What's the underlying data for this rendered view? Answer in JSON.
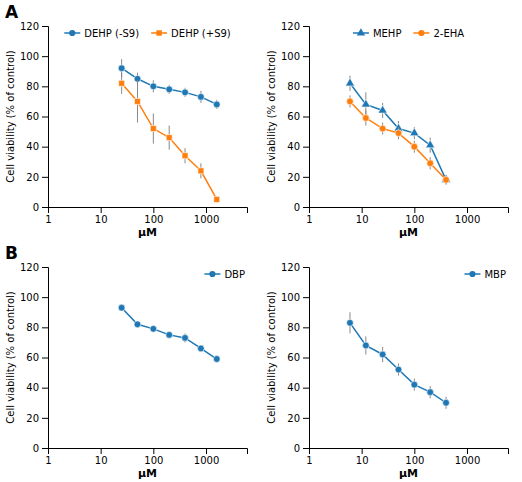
{
  "chart_data": [
    {
      "type": "line",
      "title": "A",
      "xlabel": "μM",
      "ylabel": "Cell viability (% of control)",
      "x": [
        25,
        50,
        100,
        200,
        400,
        800,
        1600
      ],
      "xlim": [
        1,
        6000
      ],
      "xticks": [
        1,
        10,
        100,
        1000
      ],
      "ylim": [
        0,
        120
      ],
      "yticks": [
        0,
        20,
        40,
        60,
        80,
        100,
        120
      ],
      "log": "x",
      "grid": false,
      "legend": "upper center",
      "series": [
        {
          "name": "DEHP (-S9)",
          "marker": "circle",
          "values": [
            92,
            85,
            80,
            78,
            76,
            73,
            68
          ],
          "errors": [
            6,
            4,
            4,
            3,
            3,
            4,
            3
          ]
        },
        {
          "name": "DEHP (+S9)",
          "marker": "square",
          "values": [
            82,
            70,
            52,
            46,
            34,
            24,
            5
          ],
          "errors": [
            7,
            14,
            10,
            8,
            5,
            5,
            2
          ]
        }
      ]
    },
    {
      "type": "line",
      "xlabel": "μM",
      "ylabel": "Cell viability (% of control)",
      "x": [
        6,
        12,
        25,
        50,
        100,
        200,
        400
      ],
      "xlim": [
        1,
        6000
      ],
      "xticks": [
        1,
        10,
        100,
        1000
      ],
      "ylim": [
        0,
        120
      ],
      "yticks": [
        0,
        20,
        40,
        60,
        80,
        100,
        120
      ],
      "log": "x",
      "grid": false,
      "legend": "upper center",
      "series": [
        {
          "name": "MEHP",
          "marker": "triangle",
          "values": [
            82,
            68,
            64,
            52,
            49,
            41,
            18
          ],
          "errors": [
            5,
            8,
            5,
            5,
            4,
            5,
            3
          ]
        },
        {
          "name": "2-EHA",
          "marker": "circle",
          "values": [
            70,
            59,
            52,
            49,
            40,
            29,
            18
          ],
          "errors": [
            4,
            5,
            4,
            4,
            4,
            4,
            3
          ]
        }
      ]
    },
    {
      "type": "line",
      "title": "B",
      "xlabel": "μM",
      "ylabel": "Cell viability (% of control)",
      "x": [
        25,
        50,
        100,
        200,
        400,
        800,
        1600
      ],
      "xlim": [
        1,
        6000
      ],
      "xticks": [
        1,
        10,
        100,
        1000
      ],
      "ylim": [
        0,
        120
      ],
      "yticks": [
        0,
        20,
        40,
        60,
        80,
        100,
        120
      ],
      "log": "x",
      "grid": false,
      "legend": "upper right",
      "series": [
        {
          "name": "DBP",
          "marker": "circle",
          "values": [
            93,
            82,
            79,
            75,
            73,
            66,
            59
          ],
          "errors": [
            2,
            2,
            2,
            2,
            3,
            2,
            2
          ]
        }
      ]
    },
    {
      "type": "line",
      "xlabel": "μM",
      "ylabel": "Cell viability (% of control)",
      "x": [
        6,
        12,
        25,
        50,
        100,
        200,
        400
      ],
      "xlim": [
        1,
        6000
      ],
      "xticks": [
        1,
        10,
        100,
        1000
      ],
      "ylim": [
        0,
        120
      ],
      "yticks": [
        0,
        20,
        40,
        60,
        80,
        100,
        120
      ],
      "log": "x",
      "grid": false,
      "legend": "upper right",
      "series": [
        {
          "name": "MBP",
          "marker": "circle",
          "values": [
            83,
            68,
            62,
            52,
            42,
            37,
            30
          ],
          "errors": [
            7,
            6,
            5,
            4,
            4,
            4,
            4
          ]
        }
      ]
    }
  ]
}
